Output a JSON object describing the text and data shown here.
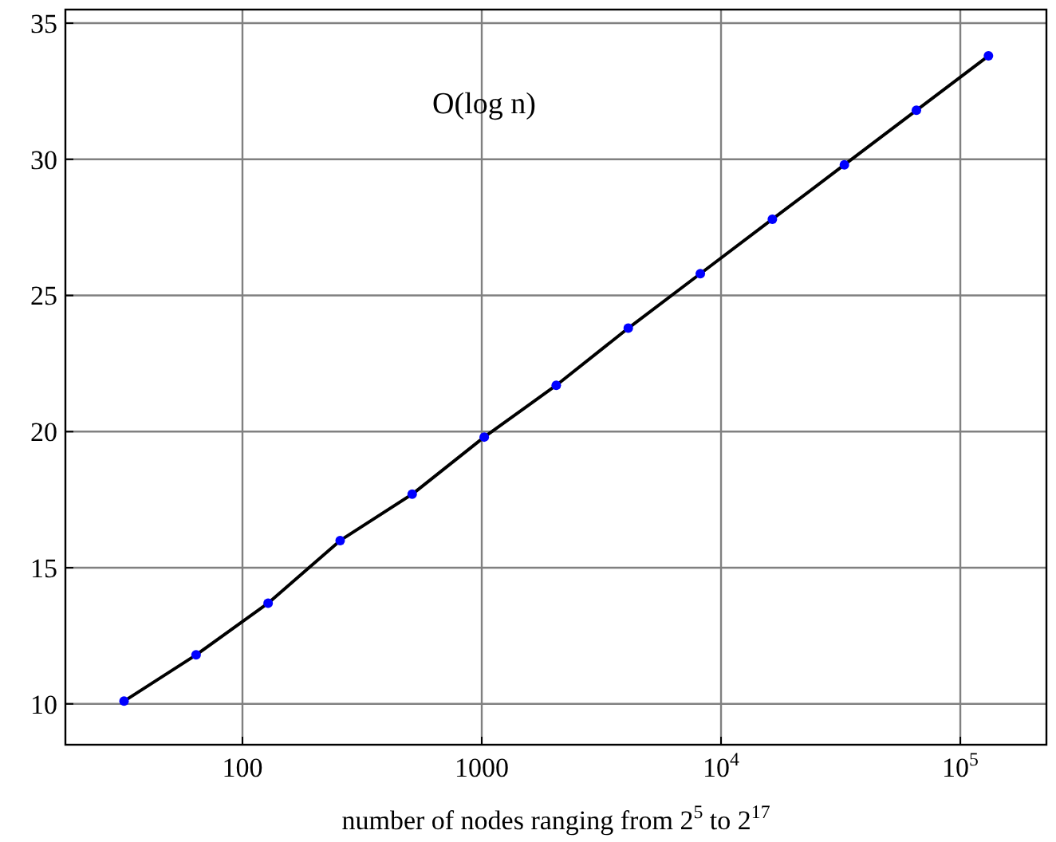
{
  "chart_data": {
    "type": "line",
    "xlabel": "number of nodes ranging from 2$^{5}$ to 2$^{17}$",
    "annotations": [
      "O(log n)"
    ],
    "x": [
      32,
      64,
      128,
      256,
      512,
      1024,
      2048,
      4096,
      8192,
      16384,
      32768,
      65536,
      131072
    ],
    "series": [
      {
        "color": "#000000",
        "values": [
          10.1,
          11.8,
          13.7,
          16.0,
          17.7,
          19.8,
          21.7,
          23.8,
          25.8,
          27.8,
          29.8,
          31.8,
          33.8
        ]
      }
    ],
    "log": "x",
    "xlim": [
      18.2,
      229000
    ],
    "ylim": [
      8.5,
      35.5
    ],
    "xticks": [
      100,
      1000,
      {
        "value": 10000,
        "label": "10$^{4}$"
      },
      {
        "value": 100000,
        "label": "10$^{5}$"
      }
    ],
    "yticks": [
      10,
      15,
      20,
      25,
      30,
      35
    ],
    "grid": true,
    "marker": "circle",
    "line_style": "solid"
  }
}
